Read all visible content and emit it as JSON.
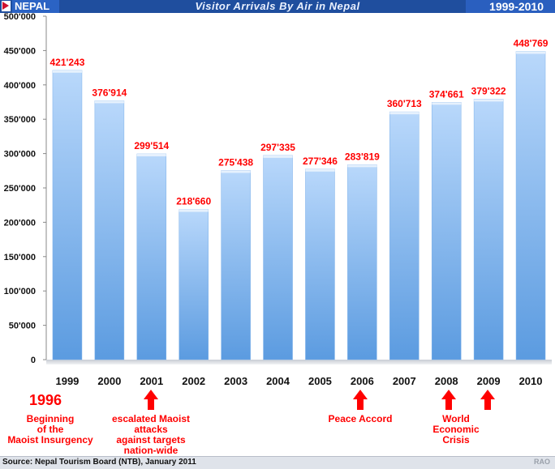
{
  "header": {
    "country": "NEPAL",
    "title": "Visitor Arrivals By Air in Nepal",
    "years": "1999-2010"
  },
  "chart_data": {
    "type": "bar",
    "title": "Visitor Arrivals By Air in Nepal",
    "categories": [
      "1999",
      "2000",
      "2001",
      "2002",
      "2003",
      "2004",
      "2005",
      "2006",
      "2007",
      "2008",
      "2009",
      "2010"
    ],
    "values": [
      421243,
      376914,
      299514,
      218660,
      275438,
      297335,
      277346,
      283819,
      360713,
      374661,
      379322,
      448769
    ],
    "value_labels": [
      "421'243",
      "376'914",
      "299'514",
      "218'660",
      "275'438",
      "297'335",
      "277'346",
      "283'819",
      "360'713",
      "374'661",
      "379'322",
      "448'769"
    ],
    "ylim": [
      0,
      500000
    ],
    "yticks": [
      0,
      50000,
      100000,
      150000,
      200000,
      250000,
      300000,
      350000,
      400000,
      450000,
      500000
    ],
    "ytick_labels": [
      "0",
      "50'000",
      "100'000",
      "150'000",
      "200'000",
      "250'000",
      "300'000",
      "350'000",
      "400'000",
      "450'000",
      "500'000"
    ],
    "grid": false,
    "bar_color": "#5b9be0"
  },
  "annotations": {
    "year_1996": "1996",
    "insurgency_l1": "Beginning",
    "insurgency_l2": "of the",
    "insurgency_l3": "Maoist Insurgency",
    "maoist_l1": "escalated Maoist",
    "maoist_l2": "attacks",
    "maoist_l3": "against targets",
    "maoist_l4": "nation-wide",
    "peace": "Peace Accord",
    "crisis_l1": "World",
    "crisis_l2": "Economic",
    "crisis_l3": "Crisis"
  },
  "footer": {
    "source": "Source: Nepal Tourism Board (NTB), January 2011",
    "credit": "RAO"
  },
  "colors": {
    "accent": "#ff0000",
    "header": "#1f4e9e"
  }
}
